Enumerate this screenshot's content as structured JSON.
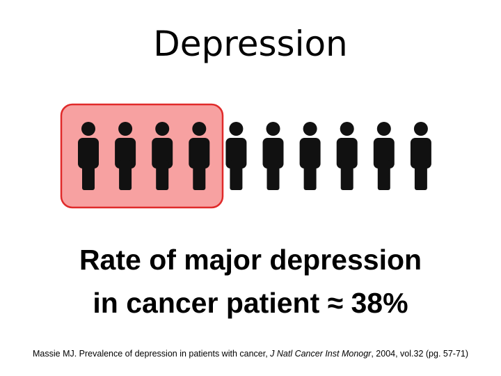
{
  "title": "Depression",
  "statement": {
    "line1": "Rate of major depression",
    "line2": "in cancer patient ≈ 38%"
  },
  "citation": {
    "text": "Massie MJ. Prevalence of depression in patients with cancer, ",
    "journal": "J Natl Cancer Inst Monogr",
    "details": ", 2004, vol.32 (pg. 57-71)"
  }
}
